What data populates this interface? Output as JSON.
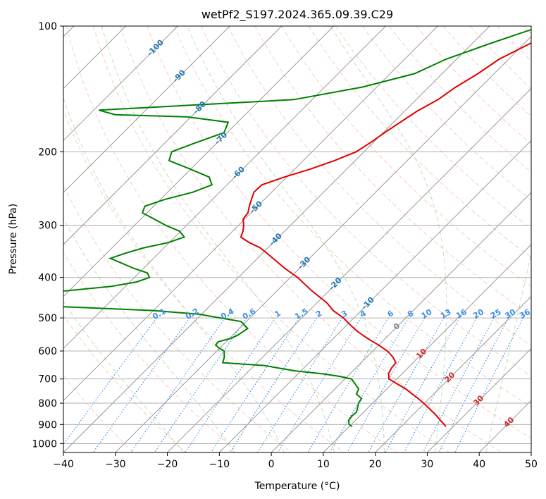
{
  "chart_data": {
    "type": "line",
    "title": "wetPf2_S197.2024.365.09.39.C29",
    "xlabel": "Temperature (°C)",
    "ylabel": "Pressure (hPa)",
    "xlim": [
      -40,
      50
    ],
    "ylim": [
      1050,
      100
    ],
    "y_scale": "log",
    "grid": true,
    "x_ticks": [
      -40,
      -30,
      -20,
      -10,
      0,
      10,
      20,
      30,
      40,
      50
    ],
    "x_tick_labels": [
      "−40",
      "−30",
      "−20",
      "−10",
      "0",
      "10",
      "20",
      "30",
      "40",
      "50"
    ],
    "y_ticks": [
      100,
      200,
      300,
      400,
      500,
      600,
      700,
      800,
      900,
      1000
    ],
    "y_tick_labels": [
      "100",
      "200",
      "300",
      "400",
      "500",
      "600",
      "700",
      "800",
      "900",
      "1000"
    ],
    "skew_lines": [
      -180,
      -170,
      -160,
      -150,
      -140,
      -130,
      -120,
      -110,
      -100,
      -90,
      -80,
      -70,
      -60,
      -50,
      -40,
      -30,
      -20,
      -10,
      0,
      10,
      20,
      30,
      40,
      50
    ],
    "dry_adiabats_c": [
      -30,
      -20,
      -10,
      0,
      10,
      20,
      30,
      40,
      50,
      60,
      70,
      80,
      90,
      100,
      110,
      120,
      130,
      140,
      150,
      160,
      170,
      180,
      190,
      200
    ],
    "moist_adiabats_c": [
      -20,
      -10,
      0,
      10,
      20,
      30,
      40
    ],
    "mixing_ratios": [
      0.1,
      0.2,
      0.4,
      0.6,
      1,
      1.5,
      2,
      3,
      4,
      6,
      8,
      10,
      13,
      16,
      20,
      25,
      30,
      36
    ],
    "mixing_ratio_labels": [
      "0.1",
      "0.2",
      "0.4",
      "0.6",
      "1",
      "1.5",
      "2",
      "3",
      "4",
      "6",
      "8",
      "10",
      "13",
      "16",
      "20",
      "25",
      "30",
      "36"
    ],
    "isotherm_labels": [
      {
        "text": "-100",
        "value": -100,
        "p": 113
      },
      {
        "text": "-90",
        "value": -90,
        "p": 132
      },
      {
        "text": "-80",
        "value": -80,
        "p": 157
      },
      {
        "text": "-70",
        "value": -70,
        "p": 186
      },
      {
        "text": "-60",
        "value": -60,
        "p": 225
      },
      {
        "text": "-50",
        "value": -50,
        "p": 272
      },
      {
        "text": "-40",
        "value": -40,
        "p": 325
      },
      {
        "text": "-30",
        "value": -30,
        "p": 370
      },
      {
        "text": "-20",
        "value": -20,
        "p": 415
      },
      {
        "text": "-10",
        "value": -10,
        "p": 462
      },
      {
        "text": "0",
        "value": 0,
        "p": 525
      },
      {
        "text": "10",
        "value": 10,
        "p": 610
      },
      {
        "text": "20",
        "value": 20,
        "p": 695
      },
      {
        "text": "30",
        "value": 30,
        "p": 790
      },
      {
        "text": "40",
        "value": 40,
        "p": 890
      }
    ],
    "series": [
      {
        "role": "temperature",
        "color": "#e00000",
        "points": [
          [
            -25.7,
            100
          ],
          [
            -28.8,
            110
          ],
          [
            -31.8,
            120
          ],
          [
            -33.1,
            130
          ],
          [
            -34.8,
            140
          ],
          [
            -35.8,
            150
          ],
          [
            -37.6,
            160
          ],
          [
            -38.7,
            170
          ],
          [
            -39.7,
            180
          ],
          [
            -40.5,
            190
          ],
          [
            -41.5,
            200
          ],
          [
            -44.0,
            210
          ],
          [
            -47.0,
            220
          ],
          [
            -50.5,
            230
          ],
          [
            -53.3,
            240
          ],
          [
            -53.4,
            250
          ],
          [
            -52.5,
            260
          ],
          [
            -51.6,
            270
          ],
          [
            -50.6,
            280
          ],
          [
            -50.3,
            290
          ],
          [
            -49.0,
            300
          ],
          [
            -48.0,
            310
          ],
          [
            -47.3,
            320
          ],
          [
            -44.6,
            330
          ],
          [
            -41.4,
            340
          ],
          [
            -37.0,
            360
          ],
          [
            -32.9,
            380
          ],
          [
            -28.6,
            400
          ],
          [
            -23.4,
            430
          ],
          [
            -18.1,
            460
          ],
          [
            -15.4,
            480
          ],
          [
            -12.0,
            500
          ],
          [
            -9.3,
            520
          ],
          [
            -6.5,
            540
          ],
          [
            -3.4,
            560
          ],
          [
            -0.1,
            580
          ],
          [
            2.8,
            600
          ],
          [
            5.0,
            620
          ],
          [
            6.7,
            640
          ],
          [
            6.9,
            660
          ],
          [
            7.4,
            680
          ],
          [
            8.5,
            700
          ],
          [
            11.1,
            720
          ],
          [
            13.7,
            740
          ],
          [
            15.8,
            760
          ],
          [
            17.9,
            780
          ],
          [
            19.8,
            800
          ],
          [
            21.6,
            820
          ],
          [
            23.3,
            840
          ],
          [
            24.9,
            860
          ],
          [
            26.4,
            880
          ],
          [
            27.9,
            900
          ],
          [
            28.6,
            910
          ]
        ]
      },
      {
        "role": "dewpoint",
        "color": "#008000",
        "points": [
          [
            -30.0,
            100
          ],
          [
            -36.5,
            110
          ],
          [
            -42.0,
            120
          ],
          [
            -45.3,
            130
          ],
          [
            -52.8,
            140
          ],
          [
            -63.5,
            150
          ],
          [
            -99.0,
            159
          ],
          [
            -95.0,
            163
          ],
          [
            -80.8,
            165
          ],
          [
            -71.8,
            170
          ],
          [
            -70.6,
            180
          ],
          [
            -74.0,
            190
          ],
          [
            -77.0,
            200
          ],
          [
            -75.8,
            210
          ],
          [
            -70.1,
            220
          ],
          [
            -64.9,
            230
          ],
          [
            -62.9,
            240
          ],
          [
            -65.2,
            250
          ],
          [
            -69.1,
            260
          ],
          [
            -71.7,
            270
          ],
          [
            -70.9,
            280
          ],
          [
            -67.4,
            290
          ],
          [
            -64.0,
            300
          ],
          [
            -60.2,
            310
          ],
          [
            -58.2,
            320
          ],
          [
            -60.2,
            330
          ],
          [
            -64.0,
            340
          ],
          [
            -66.4,
            350
          ],
          [
            -68.3,
            360
          ],
          [
            -65.1,
            370
          ],
          [
            -62.0,
            380
          ],
          [
            -58.4,
            390
          ],
          [
            -57.1,
            400
          ],
          [
            -58.7,
            410
          ],
          [
            -62.7,
            420
          ],
          [
            -70.0,
            430
          ],
          [
            -80.0,
            440
          ],
          [
            -95.0,
            450
          ],
          [
            -99.0,
            464
          ],
          [
            -68.0,
            470
          ],
          [
            -50.0,
            480
          ],
          [
            -40.4,
            490
          ],
          [
            -35.7,
            500
          ],
          [
            -31.0,
            510
          ],
          [
            -28.4,
            530
          ],
          [
            -29.0,
            550
          ],
          [
            -29.8,
            560
          ],
          [
            -31.5,
            570
          ],
          [
            -31.4,
            580
          ],
          [
            -30.2,
            590
          ],
          [
            -28.6,
            600
          ],
          [
            -27.4,
            620
          ],
          [
            -26.6,
            640
          ],
          [
            -18.1,
            650
          ],
          [
            -14.6,
            660
          ],
          [
            -10.9,
            670
          ],
          [
            -5.4,
            680
          ],
          [
            -1.5,
            690
          ],
          [
            1.3,
            700
          ],
          [
            3.0,
            720
          ],
          [
            4.6,
            740
          ],
          [
            5.1,
            760
          ],
          [
            7.0,
            780
          ],
          [
            7.3,
            800
          ],
          [
            8.0,
            820
          ],
          [
            8.6,
            840
          ],
          [
            8.5,
            860
          ],
          [
            8.7,
            880
          ],
          [
            9.6,
            900
          ],
          [
            10.6,
            910
          ]
        ]
      }
    ]
  }
}
